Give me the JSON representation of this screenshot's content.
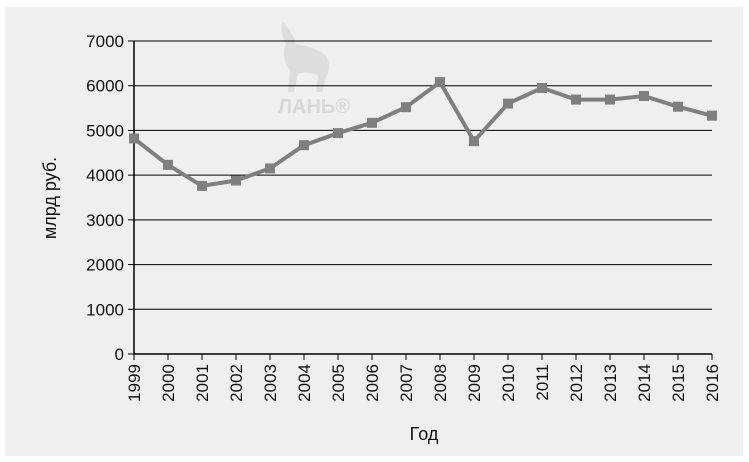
{
  "chart_data": {
    "type": "line",
    "title": "",
    "xlabel": "Год",
    "ylabel": "млрд руб.",
    "categories": [
      "1999",
      "2000",
      "2001",
      "2002",
      "2003",
      "2004",
      "2005",
      "2006",
      "2007",
      "2008",
      "2009",
      "2010",
      "2011",
      "2012",
      "2013",
      "2014",
      "2015",
      "2016"
    ],
    "series": [
      {
        "values": [
          4820,
          4230,
          3760,
          3880,
          4150,
          4670,
          4940,
          5170,
          5520,
          6080,
          4760,
          5600,
          5950,
          5690,
          5690,
          5770,
          5530,
          5330
        ]
      }
    ],
    "ylim": [
      0,
      7000
    ],
    "yticks": [
      0,
      1000,
      2000,
      3000,
      4000,
      5000,
      6000,
      7000
    ],
    "grid": "horizontal",
    "legend": "none",
    "marker": "square",
    "line_color": "#7f7f7f",
    "background_color": "#efefef"
  },
  "watermark": {
    "text": "ЛАНЬ®"
  }
}
